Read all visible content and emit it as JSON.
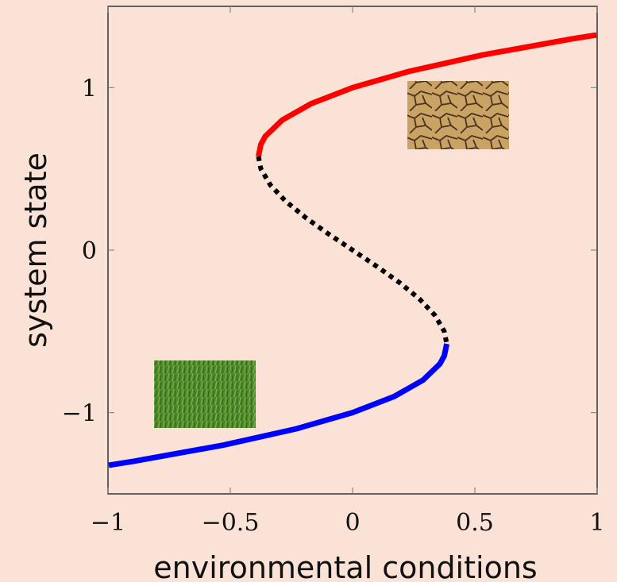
{
  "chart_data": {
    "type": "line",
    "xlabel": "environmental conditions",
    "ylabel": "system state",
    "xlim": [
      -1,
      1
    ],
    "ylim": [
      -1.5,
      1.5
    ],
    "xticks": [
      {
        "value": -1,
        "label": "−1"
      },
      {
        "value": -0.5,
        "label": "−0.5"
      },
      0,
      0.5,
      1
    ],
    "yticks": [
      {
        "value": -1,
        "label": "−1"
      },
      0,
      1
    ],
    "series": [
      {
        "color": "#ff0000",
        "dashed": false,
        "x": [
          -0.385,
          -0.375,
          -0.357,
          -0.288,
          -0.171,
          0,
          0.231,
          0.528,
          0.897,
          0.997
        ],
        "values": [
          0.577,
          0.65,
          0.7,
          0.8,
          0.9,
          1.0,
          1.1,
          1.2,
          1.3,
          1.324
        ]
      },
      {
        "color": "#000000",
        "dashed": true,
        "x": [
          -0.385,
          -0.375,
          -0.336,
          -0.273,
          -0.192,
          -0.099,
          0,
          0.099,
          0.192,
          0.273,
          0.336,
          0.375,
          0.385
        ],
        "values": [
          0.577,
          0.5,
          0.4,
          0.3,
          0.2,
          0.1,
          0,
          -0.1,
          -0.2,
          -0.3,
          -0.4,
          -0.5,
          -0.577
        ]
      },
      {
        "color": "#0000ff",
        "dashed": false,
        "x": [
          0.385,
          0.375,
          0.357,
          0.288,
          0.171,
          0,
          -0.231,
          -0.528,
          -0.897,
          -0.997
        ],
        "values": [
          -0.577,
          -0.65,
          -0.7,
          -0.8,
          -0.9,
          -1.0,
          -1.1,
          -1.2,
          -1.3,
          -1.324
        ]
      }
    ]
  }
}
